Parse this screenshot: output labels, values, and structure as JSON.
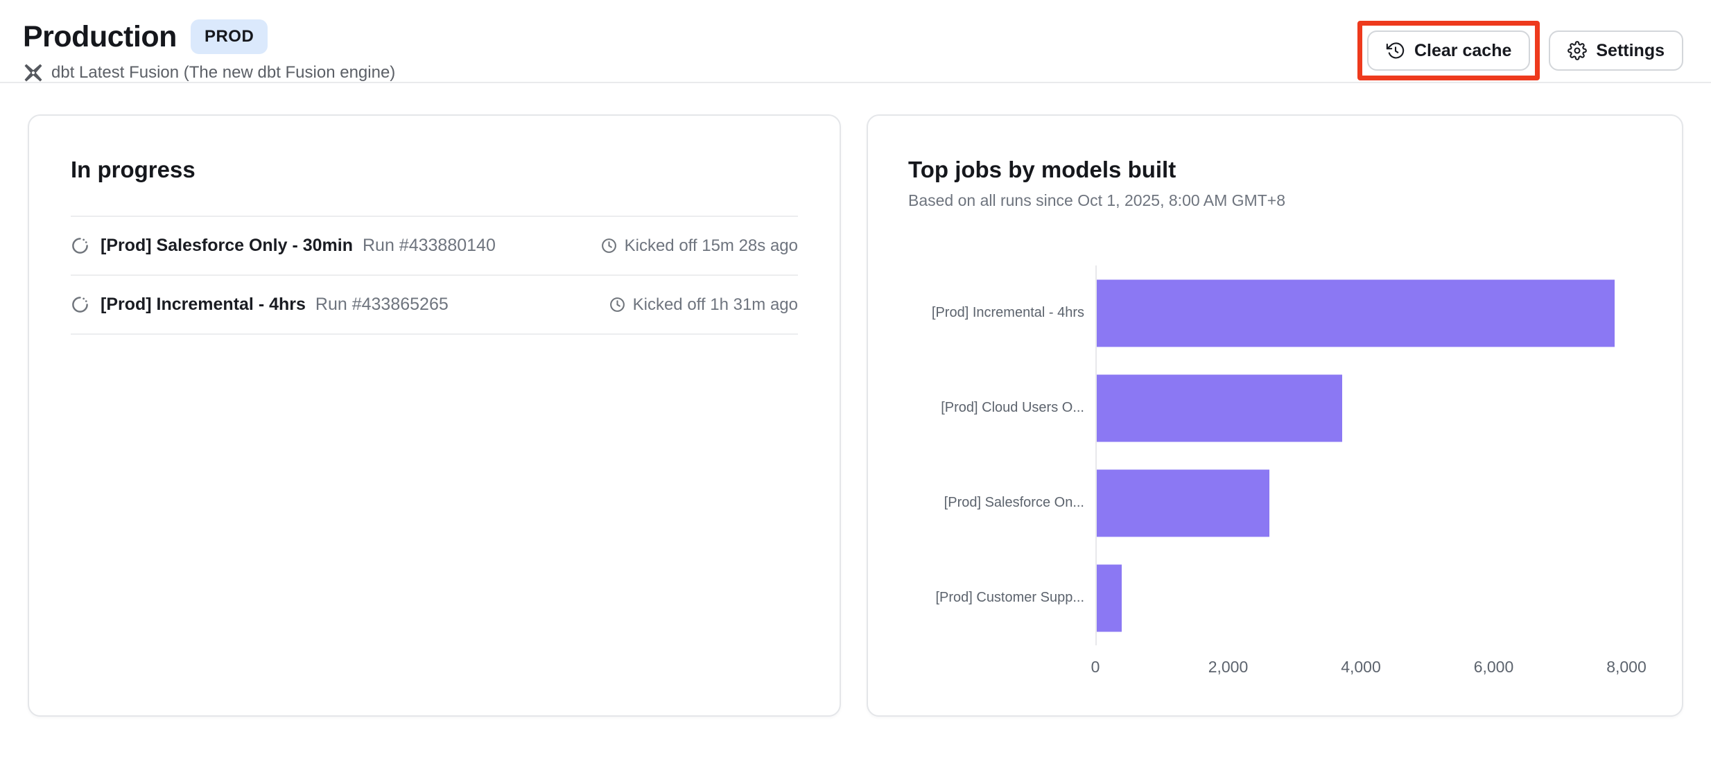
{
  "header": {
    "title": "Production",
    "env_badge": "PROD",
    "subtitle": "dbt Latest Fusion (The new dbt Fusion engine)",
    "clear_cache_label": "Clear cache",
    "settings_label": "Settings"
  },
  "in_progress": {
    "title": "In progress",
    "runs": [
      {
        "job": "[Prod] Salesforce Only - 30min",
        "run": "Run #433880140",
        "kicked_off": "Kicked off 15m 28s ago",
        "status_icon": "spinner-icon"
      },
      {
        "job": "[Prod] Incremental - 4hrs",
        "run": "Run #433865265",
        "kicked_off": "Kicked off 1h 31m ago",
        "status_icon": "spinner-icon"
      }
    ]
  },
  "chart_card": {
    "title": "Top jobs by models built",
    "subtitle": "Based on all runs since Oct 1, 2025, 8:00 AM GMT+8"
  },
  "chart_data": {
    "type": "bar",
    "orientation": "horizontal",
    "title": "Top jobs by models built",
    "subtitle": "Based on all runs since Oct 1, 2025, 8:00 AM GMT+8",
    "categories": [
      "[Prod] Incremental - 4hrs",
      "[Prod] Cloud Users O...",
      "[Prod] Salesforce On...",
      "[Prod] Customer Supp..."
    ],
    "values": [
      7800,
      3700,
      2600,
      380
    ],
    "xlabel": "",
    "ylabel": "",
    "xlim": [
      0,
      8230
    ],
    "x_ticks": [
      {
        "value": 0,
        "label": "0"
      },
      {
        "value": 2000,
        "label": "2,000"
      },
      {
        "value": 4000,
        "label": "4,000"
      },
      {
        "value": 6000,
        "label": "6,000"
      },
      {
        "value": 8000,
        "label": "8,000"
      }
    ],
    "grid": false,
    "legend": false,
    "bar_color": "#8b78f3"
  },
  "icons": {
    "engine": "dbt-fusion-icon",
    "clear_cache": "history-icon",
    "settings": "gear-icon",
    "run_status": "spinner-icon",
    "kicked_off": "clock-icon"
  },
  "colors": {
    "bar": "#8b78f3",
    "annotation_red": "#ee3a1d",
    "badge_bg": "#dbe9fc",
    "text_primary": "#15171c",
    "text_secondary": "#6e747e",
    "card_border": "#e4e6e9"
  }
}
